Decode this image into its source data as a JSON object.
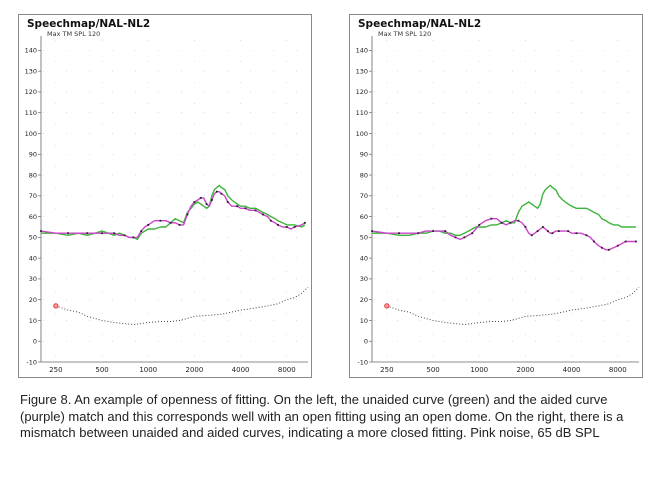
{
  "chart_data": [
    {
      "type": "line",
      "title": "Speechmap/NAL-NL2",
      "subtitle": "Max TM SPL 120",
      "ylim": [
        -10,
        145
      ],
      "yticks": [
        -10,
        0,
        10,
        20,
        30,
        40,
        50,
        60,
        70,
        80,
        90,
        100,
        110,
        120,
        130,
        140
      ],
      "xticks": [
        250,
        500,
        1000,
        2000,
        4000,
        8000
      ],
      "xlim": [
        200,
        11000
      ],
      "xscale": "log",
      "grid": "dotted",
      "series": [
        {
          "name": "unaided",
          "color": "#3cb43c",
          "x": [
            200,
            250,
            300,
            350,
            400,
            450,
            500,
            550,
            600,
            650,
            700,
            750,
            800,
            850,
            900,
            950,
            1000,
            1100,
            1200,
            1300,
            1400,
            1500,
            1600,
            1700,
            1800,
            1900,
            2000,
            2100,
            2200,
            2300,
            2400,
            2500,
            2600,
            2700,
            2800,
            2900,
            3000,
            3150,
            3300,
            3500,
            3800,
            4000,
            4300,
            4600,
            5000,
            5300,
            5600,
            6000,
            6300,
            6700,
            7000,
            7500,
            8000,
            8500,
            9000,
            10000,
            10500
          ],
          "y": [
            52,
            52,
            51,
            52,
            51,
            52,
            53,
            52,
            51,
            52,
            51,
            50,
            50,
            49,
            52,
            53,
            54,
            54,
            55,
            55,
            57,
            59,
            58,
            57,
            62,
            64,
            66,
            67,
            66,
            65,
            64,
            65,
            70,
            73,
            74,
            75,
            74,
            73,
            70,
            68,
            66,
            65,
            65,
            64,
            64,
            63,
            62,
            61,
            60,
            59,
            58,
            57,
            56,
            56,
            56,
            55,
            56
          ]
        },
        {
          "name": "aided",
          "color": "#cc44cc",
          "markers": true,
          "x": [
            200,
            250,
            300,
            350,
            400,
            450,
            500,
            550,
            600,
            650,
            700,
            750,
            800,
            850,
            900,
            950,
            1000,
            1100,
            1200,
            1300,
            1400,
            1500,
            1600,
            1700,
            1800,
            1900,
            2000,
            2100,
            2200,
            2300,
            2400,
            2500,
            2600,
            2700,
            2800,
            2900,
            3000,
            3150,
            3300,
            3500,
            3800,
            4000,
            4300,
            4600,
            5000,
            5300,
            5600,
            6000,
            6300,
            6700,
            7000,
            7500,
            8000,
            8500,
            9000,
            10000,
            10500
          ],
          "y": [
            53,
            52,
            52,
            52,
            52,
            52,
            52,
            52,
            52,
            51,
            51,
            50,
            50,
            50,
            53,
            55,
            56,
            58,
            58,
            58,
            57,
            57,
            56,
            56,
            61,
            65,
            67,
            68,
            69,
            69,
            66,
            65,
            68,
            71,
            72,
            72,
            71,
            70,
            67,
            65,
            65,
            64,
            64,
            63,
            63,
            62,
            61,
            60,
            58,
            57,
            56,
            55,
            55,
            54,
            55,
            56,
            57
          ]
        },
        {
          "name": "reference",
          "color": "#444444",
          "dotted": true,
          "x": [
            250,
            300,
            350,
            400,
            500,
            600,
            700,
            800,
            900,
            1000,
            1200,
            1400,
            1600,
            1800,
            2000,
            2500,
            3000,
            3500,
            4000,
            5000,
            6000,
            7000,
            8000,
            9000,
            10000,
            11000
          ],
          "y": [
            17,
            15,
            14,
            12,
            10,
            9,
            8.5,
            8,
            8.5,
            9,
            9.5,
            9.5,
            10,
            11,
            12,
            12.5,
            13,
            14,
            15,
            16,
            17,
            18,
            20,
            21,
            23,
            26
          ]
        },
        {
          "name": "start point",
          "color": "#dd3333",
          "x": [
            250
          ],
          "y": [
            17
          ]
        }
      ]
    },
    {
      "type": "line",
      "title": "Speechmap/NAL-NL2",
      "subtitle": "Max TM SPL 120",
      "ylim": [
        -10,
        145
      ],
      "yticks": [
        -10,
        0,
        10,
        20,
        30,
        40,
        50,
        60,
        70,
        80,
        90,
        100,
        110,
        120,
        130,
        140
      ],
      "xticks": [
        250,
        500,
        1000,
        2000,
        4000,
        8000
      ],
      "xlim": [
        200,
        11000
      ],
      "xscale": "log",
      "grid": "dotted",
      "series": [
        {
          "name": "unaided",
          "color": "#3cb43c",
          "x": [
            200,
            250,
            300,
            350,
            400,
            450,
            500,
            550,
            600,
            650,
            700,
            750,
            800,
            850,
            900,
            950,
            1000,
            1100,
            1200,
            1300,
            1400,
            1500,
            1600,
            1700,
            1800,
            1900,
            2000,
            2100,
            2200,
            2300,
            2400,
            2500,
            2600,
            2700,
            2800,
            2900,
            3000,
            3150,
            3300,
            3500,
            3800,
            4000,
            4300,
            4600,
            5000,
            5300,
            5600,
            6000,
            6300,
            6700,
            7000,
            7500,
            8000,
            8500,
            9000,
            10000,
            10500
          ],
          "y": [
            52,
            52,
            51,
            51,
            52,
            52,
            53,
            53,
            52,
            52,
            51,
            51,
            52,
            53,
            54,
            55,
            55,
            55,
            56,
            56,
            57,
            58,
            57,
            57,
            62,
            65,
            66,
            67,
            66,
            65,
            64,
            66,
            71,
            73,
            74,
            75,
            74,
            73,
            70,
            68,
            66,
            65,
            64,
            64,
            64,
            63,
            62,
            61,
            59,
            58,
            57,
            56,
            56,
            55,
            55,
            55,
            55
          ]
        },
        {
          "name": "aided",
          "color": "#cc44cc",
          "markers": true,
          "x": [
            200,
            250,
            300,
            350,
            400,
            450,
            500,
            550,
            600,
            650,
            700,
            750,
            800,
            850,
            900,
            950,
            1000,
            1100,
            1200,
            1300,
            1400,
            1500,
            1600,
            1700,
            1800,
            1900,
            2000,
            2100,
            2200,
            2300,
            2400,
            2500,
            2600,
            2700,
            2800,
            2900,
            3000,
            3150,
            3300,
            3500,
            3800,
            4000,
            4300,
            4600,
            5000,
            5300,
            5600,
            6000,
            6300,
            6700,
            7000,
            7500,
            8000,
            8500,
            9000,
            10000,
            10500
          ],
          "y": [
            53,
            52,
            52,
            52,
            52,
            53,
            53,
            53,
            53,
            51,
            50,
            49,
            50,
            51,
            52,
            54,
            56,
            58,
            59,
            59,
            57,
            56,
            57,
            58,
            58,
            57,
            55,
            52,
            51,
            52,
            53,
            54,
            55,
            54,
            53,
            52,
            52,
            53,
            53,
            53,
            53,
            52,
            52,
            52,
            51,
            50,
            48,
            46,
            45,
            44,
            44,
            45,
            46,
            47,
            48,
            48,
            48
          ]
        },
        {
          "name": "reference",
          "color": "#444444",
          "dotted": true,
          "x": [
            250,
            300,
            350,
            400,
            500,
            600,
            700,
            800,
            900,
            1000,
            1200,
            1400,
            1600,
            1800,
            2000,
            2500,
            3000,
            3500,
            4000,
            5000,
            6000,
            7000,
            8000,
            9000,
            10000,
            11000
          ],
          "y": [
            17,
            15,
            14,
            12,
            10,
            9,
            8.5,
            8,
            8.5,
            9,
            9.5,
            9.5,
            10,
            11,
            12,
            12.5,
            13,
            14,
            15,
            16,
            17,
            18,
            20,
            21,
            23,
            26
          ]
        },
        {
          "name": "start point",
          "color": "#dd3333",
          "x": [
            250
          ],
          "y": [
            17
          ]
        }
      ]
    }
  ],
  "caption": "Figure 8. An example of openness of fitting. On the left, the unaided curve (green) and the aided curve (purple) match and this corresponds well with an open fitting using an open dome. On the right, there is a mismatch between unaided and aided curves, indicating a more closed fitting. Pink noise, 65 dB SPL"
}
